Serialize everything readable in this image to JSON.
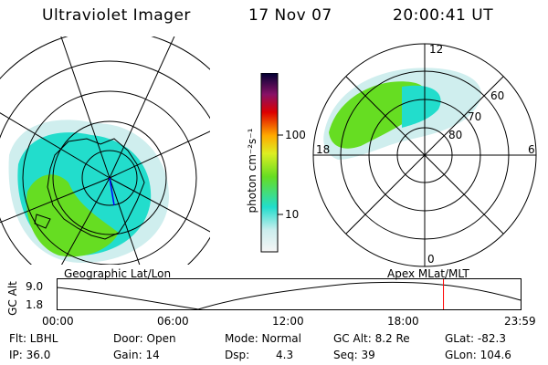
{
  "header": {
    "instrument": "Ultraviolet Imager",
    "date": "17 Nov 07",
    "time": "20:00:41 UT"
  },
  "colors": {
    "aurora_green": "#66dd22",
    "aurora_cyan": "#22ddcc",
    "aurora_light": "#cfeeee",
    "grid": "#000000",
    "marker": "#ff0000"
  },
  "colorbar": {
    "unit_label": "photon cm⁻²s⁻¹",
    "tick_100": "100",
    "tick_10": "10"
  },
  "panels": {
    "geographic_label": "Geographic Lat/Lon",
    "apex_label": "Apex MLat/MLT"
  },
  "polar": {
    "mlt_top": "12",
    "mlt_left": "18",
    "mlt_right": "6",
    "mlt_bottom": "0",
    "lat_60": "60",
    "lat_70": "70",
    "lat_80": "80"
  },
  "altitude_plot": {
    "axis_label": "GC Alt",
    "ymax": "9.0",
    "ymin": "1.8",
    "ticks": [
      "00:00",
      "06:00",
      "12:00",
      "18:00",
      "23:59"
    ],
    "marker_time_hours": 20.01
  },
  "status": {
    "filter": "Flt: LBHL",
    "ip": "IP: 36.0",
    "door": "Door: Open",
    "gain": "Gain: 14",
    "mode": "Mode: Normal",
    "dsp_label": "Dsp:",
    "dsp_value": "4.3",
    "gc_alt": "GC Alt: 8.2 Re",
    "seq": "Seq: 39",
    "glat": "GLat: -82.3",
    "glon": "GLon: 104.6"
  }
}
